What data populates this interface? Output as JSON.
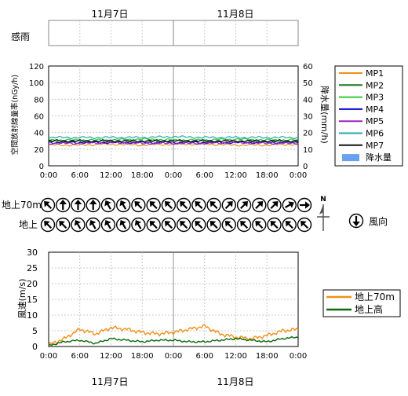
{
  "dates": {
    "day1": "11月7日",
    "day2": "11月8日"
  },
  "rain_sense": {
    "label": "感雨"
  },
  "time_ticks": [
    "0:00",
    "6:00",
    "12:00",
    "18:00",
    "0:00",
    "6:00",
    "12:00",
    "18:00",
    "0:00"
  ],
  "dose_chart": {
    "ylabel_left": "空間放射線量率(nGy/h)",
    "ylabel_right": "降水量(mm/h)",
    "y_left_ticks": [
      "0",
      "20",
      "40",
      "60",
      "80",
      "100",
      "120"
    ],
    "y_right_ticks": [
      "0",
      "10",
      "20",
      "30",
      "40",
      "50",
      "60"
    ],
    "legend": [
      "MP1",
      "MP2",
      "MP3",
      "MP4",
      "MP5",
      "MP6",
      "MP7",
      "降水量"
    ]
  },
  "wind_dir": {
    "label_70m": "地上70m",
    "label_ground": "地上",
    "north": "N",
    "legend_label": "風向",
    "dirs_70m": [
      315,
      0,
      0,
      0,
      330,
      330,
      315,
      315,
      315,
      315,
      315,
      315,
      45,
      45,
      45,
      45,
      60,
      90
    ],
    "dirs_ground": [
      315,
      315,
      330,
      330,
      330,
      330,
      330,
      315,
      315,
      315,
      315,
      315,
      315,
      315,
      315,
      315,
      315,
      315
    ]
  },
  "wind_speed_chart": {
    "ylabel": "風速(m/s)",
    "y_ticks": [
      "0",
      "5",
      "10",
      "15",
      "20",
      "25",
      "30"
    ],
    "legend": [
      "地上70m",
      "地上高"
    ]
  },
  "chart_data": [
    {
      "type": "line",
      "title": "",
      "x": [
        "11/7 0:00",
        "11/7 6:00",
        "11/7 12:00",
        "11/7 18:00",
        "11/8 0:00",
        "11/8 6:00",
        "11/8 12:00",
        "11/8 18:00",
        "11/9 0:00"
      ],
      "xlabel": "",
      "ylabel": "空間放射線量率(nGy/h)",
      "ylim": [
        0,
        120
      ],
      "y2label": "降水量(mm/h)",
      "y2lim": [
        0,
        60
      ],
      "grid": true,
      "legend_position": "right",
      "series": [
        {
          "name": "MP1",
          "color": "#f0901a",
          "values": [
            25,
            25,
            26,
            25,
            26,
            26,
            25,
            25,
            26
          ]
        },
        {
          "name": "MP2",
          "color": "#1a7a1a",
          "values": [
            29,
            29,
            29,
            29,
            30,
            29,
            29,
            29,
            29
          ]
        },
        {
          "name": "MP3",
          "color": "#33cc33",
          "values": [
            31,
            31,
            31,
            32,
            31,
            31,
            32,
            31,
            31
          ]
        },
        {
          "name": "MP4",
          "color": "#0a0ac8",
          "values": [
            28,
            28,
            28,
            28,
            28,
            28,
            28,
            28,
            28
          ]
        },
        {
          "name": "MP5",
          "color": "#a020c0",
          "values": [
            27,
            27,
            28,
            27,
            27,
            27,
            28,
            27,
            27
          ]
        },
        {
          "name": "MP6",
          "color": "#20a8a8",
          "values": [
            34,
            34,
            34,
            34,
            35,
            34,
            34,
            34,
            34
          ]
        },
        {
          "name": "MP7",
          "color": "#101010",
          "values": [
            30,
            30,
            30,
            30,
            30,
            30,
            30,
            30,
            30
          ]
        },
        {
          "name": "降水量",
          "color": "#6aa0f0",
          "values": [
            0,
            0,
            0,
            0,
            0,
            0,
            0,
            0,
            0
          ]
        }
      ]
    },
    {
      "type": "line",
      "title": "",
      "x": [
        "11/7 0:00",
        "11/7 3:00",
        "11/7 6:00",
        "11/7 9:00",
        "11/7 12:00",
        "11/7 15:00",
        "11/7 18:00",
        "11/7 21:00",
        "11/8 0:00",
        "11/8 3:00",
        "11/8 6:00",
        "11/8 9:00",
        "11/8 12:00",
        "11/8 15:00",
        "11/8 18:00",
        "11/8 21:00",
        "11/9 0:00"
      ],
      "xlabel": "",
      "ylabel": "風速(m/s)",
      "ylim": [
        0,
        30
      ],
      "grid": true,
      "legend_position": "right",
      "series": [
        {
          "name": "地上70m",
          "color": "#f0901a",
          "values": [
            0.5,
            2.5,
            5.5,
            4.0,
            6.0,
            5.5,
            4.5,
            4.0,
            4.5,
            5.5,
            6.5,
            4.0,
            3.0,
            2.5,
            3.5,
            5.0,
            5.5
          ]
        },
        {
          "name": "地上高",
          "color": "#0a6a0a",
          "values": [
            0.3,
            1.5,
            2.0,
            1.0,
            2.5,
            2.0,
            1.5,
            2.0,
            2.0,
            1.5,
            1.5,
            2.0,
            2.5,
            2.0,
            1.5,
            2.5,
            3.0
          ]
        }
      ]
    }
  ]
}
